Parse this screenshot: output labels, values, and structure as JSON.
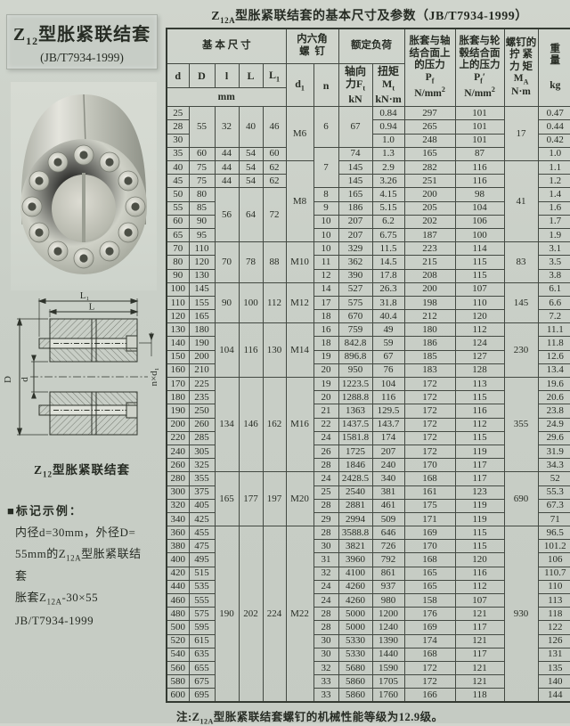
{
  "left": {
    "title_box": {
      "title_html": "Z<sub>12</sub>型胀紧联结套",
      "subtitle": "(JB/T7934-1999)"
    },
    "drawing": {
      "caption_html": "Z<sub>12</sub>型胀紧联结套",
      "labels": {
        "L1": "L₁",
        "L": "L",
        "D": "D",
        "d": "d",
        "nxd1": "n×d₁"
      }
    },
    "marking": {
      "heading_html": "■标记示例：",
      "lines_html": [
        "内径d=30mm，外径D=",
        "55mm的Z<sub>12A</sub>型胀紧联结",
        "套",
        "胀套Z<sub>12A</sub>-30×55",
        "JB/T7934-1999"
      ]
    }
  },
  "table": {
    "title_html": "Z<sub>12A</sub>型胀紧联结套的基本尺寸及参数（JB/T7934-1999）",
    "header": {
      "basic_dims_html": "基 本 尺 寸",
      "hex_screw_html": "内六角<br>螺&nbsp;&nbsp;钉",
      "rated_load_html": "额定负荷",
      "pf_html": "胀套与轴<br>结合面上<br>的压力<br>P<sub>f</sub><br>N/mm<sup>2</sup>",
      "pf2_html": "胀套与轮<br>毂结合面<br>上的压力<br>P<sub>f</sub>′<br>N/mm<sup>2</sup>",
      "ma_html": "螺钉的<br>拧&nbsp;紧<br>力&nbsp;矩<br>M<sub>A</sub><br>N·m",
      "weight_html": "重<br>量<br><br>kg",
      "col_d": "d",
      "col_D": "D",
      "col_l": "l",
      "col_L": "L",
      "col_L1_html": "L<sub>1</sub>",
      "col_d1_html": "d<sub>1</sub>",
      "col_n": "n",
      "axial_html": "轴向<br>力F<sub>t</sub><br>kN",
      "torque_html": "扭矩<br>M<sub>t</sub><br>kN·m",
      "unit_mm": "mm"
    },
    "rows": [
      [
        "25",
        [
          "55",
          3
        ],
        [
          "32",
          3
        ],
        [
          "40",
          3
        ],
        [
          "46",
          3
        ],
        [
          "M6",
          4
        ],
        [
          "6",
          3
        ],
        [
          "67",
          3
        ],
        "0.84",
        "297",
        "101",
        [
          "17",
          4
        ],
        "0.47"
      ],
      [
        "28",
        "0.94",
        "265",
        "101",
        "0.44"
      ],
      [
        "30",
        "1.0",
        "248",
        "101",
        "0.42"
      ],
      [
        "35",
        "60",
        "44",
        "54",
        "60",
        [
          "7",
          3
        ],
        "74",
        "1.3",
        "165",
        "87",
        "1.0"
      ],
      [
        "40",
        "75",
        "44",
        "54",
        "62",
        [
          "M8",
          6
        ],
        "145",
        "2.9",
        "282",
        "116",
        [
          "41",
          6
        ],
        "1.1"
      ],
      [
        "45",
        "75",
        "44",
        "54",
        "62",
        "145",
        "3.26",
        "251",
        "116",
        "1.2"
      ],
      [
        "50",
        "80",
        [
          "56",
          4
        ],
        [
          "64",
          4
        ],
        [
          "72",
          4
        ],
        "8",
        "165",
        "4.15",
        "200",
        "98",
        "1.4"
      ],
      [
        "55",
        "85",
        "9",
        "186",
        "5.15",
        "205",
        "104",
        "1.6"
      ],
      [
        "60",
        "90",
        "10",
        "207",
        "6.2",
        "202",
        "106",
        "1.7"
      ],
      [
        "65",
        "95",
        "10",
        "207",
        "6.75",
        "187",
        "100",
        "1.9"
      ],
      [
        "70",
        "110",
        [
          "70",
          3
        ],
        [
          "78",
          3
        ],
        [
          "88",
          3
        ],
        [
          "M10",
          3
        ],
        "10",
        "329",
        "11.5",
        "223",
        "114",
        [
          "83",
          3
        ],
        "3.1"
      ],
      [
        "80",
        "120",
        "11",
        "362",
        "14.5",
        "215",
        "115",
        "3.5"
      ],
      [
        "90",
        "130",
        "12",
        "390",
        "17.8",
        "208",
        "115",
        "3.8"
      ],
      [
        "100",
        "145",
        [
          "90",
          3
        ],
        [
          "100",
          3
        ],
        [
          "112",
          3
        ],
        [
          "M12",
          3
        ],
        "14",
        "527",
        "26.3",
        "200",
        "107",
        [
          "145",
          3
        ],
        "6.1"
      ],
      [
        "110",
        "155",
        "17",
        "575",
        "31.8",
        "198",
        "110",
        "6.6"
      ],
      [
        "120",
        "165",
        "18",
        "670",
        "40.4",
        "212",
        "120",
        "7.2"
      ],
      [
        "130",
        "180",
        [
          "104",
          4
        ],
        [
          "116",
          4
        ],
        [
          "130",
          4
        ],
        [
          "M14",
          4
        ],
        "16",
        "759",
        "49",
        "180",
        "112",
        [
          "230",
          4
        ],
        "11.1"
      ],
      [
        "140",
        "190",
        "18",
        "842.8",
        "59",
        "186",
        "124",
        "11.8"
      ],
      [
        "150",
        "200",
        "19",
        "896.8",
        "67",
        "185",
        "127",
        "12.6"
      ],
      [
        "160",
        "210",
        "20",
        "950",
        "76",
        "183",
        "128",
        "13.4"
      ],
      [
        "170",
        "225",
        [
          "134",
          7
        ],
        [
          "146",
          7
        ],
        [
          "162",
          7
        ],
        [
          "M16",
          7
        ],
        "19",
        "1223.5",
        "104",
        "172",
        "113",
        [
          "355",
          7
        ],
        "19.6"
      ],
      [
        "180",
        "235",
        "20",
        "1288.8",
        "116",
        "172",
        "115",
        "20.6"
      ],
      [
        "190",
        "250",
        "21",
        "1363",
        "129.5",
        "172",
        "116",
        "23.8"
      ],
      [
        "200",
        "260",
        "22",
        "1437.5",
        "143.7",
        "172",
        "112",
        "24.9"
      ],
      [
        "220",
        "285",
        "24",
        "1581.8",
        "174",
        "172",
        "115",
        "29.6"
      ],
      [
        "240",
        "305",
        "26",
        "1725",
        "207",
        "172",
        "119",
        "31.9"
      ],
      [
        "260",
        "325",
        "28",
        "1846",
        "240",
        "170",
        "117",
        "34.3"
      ],
      [
        "280",
        "355",
        [
          "165",
          4
        ],
        [
          "177",
          4
        ],
        [
          "197",
          4
        ],
        [
          "M20",
          4
        ],
        "24",
        "2428.5",
        "340",
        "168",
        "117",
        [
          "690",
          4
        ],
        "52"
      ],
      [
        "300",
        "375",
        "25",
        "2540",
        "381",
        "161",
        "123",
        "55.3"
      ],
      [
        "320",
        "405",
        "28",
        "2881",
        "461",
        "175",
        "119",
        "67.3"
      ],
      [
        "340",
        "425",
        "29",
        "2994",
        "509",
        "171",
        "119",
        "71"
      ],
      [
        "360",
        "455",
        [
          "190",
          13
        ],
        [
          "202",
          13
        ],
        [
          "224",
          13
        ],
        [
          "M22",
          13
        ],
        "28",
        "3588.8",
        "646",
        "169",
        "115",
        [
          "930",
          13
        ],
        "96.5"
      ],
      [
        "380",
        "475",
        "30",
        "3821",
        "726",
        "170",
        "115",
        "101.2"
      ],
      [
        "400",
        "495",
        "31",
        "3960",
        "792",
        "168",
        "120",
        "106"
      ],
      [
        "420",
        "515",
        "32",
        "4100",
        "861",
        "165",
        "116",
        "110.7"
      ],
      [
        "440",
        "535",
        "24",
        "4260",
        "937",
        "165",
        "112",
        "110"
      ],
      [
        "460",
        "555",
        "24",
        "4260",
        "980",
        "158",
        "107",
        "113"
      ],
      [
        "480",
        "575",
        "28",
        "5000",
        "1200",
        "176",
        "121",
        "118"
      ],
      [
        "500",
        "595",
        "28",
        "5000",
        "1240",
        "169",
        "117",
        "122"
      ],
      [
        "520",
        "615",
        "30",
        "5330",
        "1390",
        "174",
        "121",
        "126"
      ],
      [
        "540",
        "635",
        "30",
        "5330",
        "1440",
        "168",
        "117",
        "131"
      ],
      [
        "560",
        "655",
        "32",
        "5680",
        "1590",
        "172",
        "121",
        "135"
      ],
      [
        "580",
        "675",
        "33",
        "5860",
        "1705",
        "172",
        "121",
        "140"
      ],
      [
        "600",
        "695",
        "33",
        "5860",
        "1760",
        "166",
        "118",
        "144"
      ]
    ],
    "note_html": "注:Z<sub>12A</sub>型胀紧联结套螺钉的机械性能等级为12.9级。"
  }
}
